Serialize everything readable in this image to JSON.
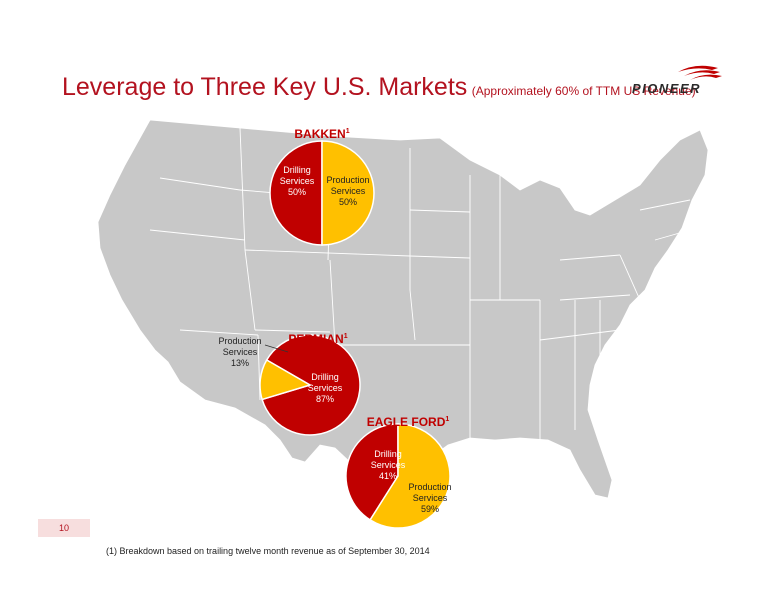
{
  "title": {
    "main": "Leverage to Three Key U.S. Markets",
    "sub": "(Approximately 60% of TTM US Revenue)"
  },
  "logo": {
    "text": "PIONEER"
  },
  "page_number": "10",
  "footnote": "(1)  Breakdown based on trailing twelve month revenue as of September 30, 2014",
  "colors": {
    "drilling": "#c00000",
    "production": "#ffc000",
    "title": "#b3121f",
    "map": "#c8c8c8"
  },
  "chart_data": [
    {
      "type": "pie",
      "title": "BAKKEN",
      "title_superscript": "1",
      "slices": [
        {
          "name": "Drilling Services",
          "value": 50,
          "label": "50%"
        },
        {
          "name": "Production Services",
          "value": 50,
          "label": "50%"
        }
      ]
    },
    {
      "type": "pie",
      "title": "PERMIAN",
      "title_superscript": "1",
      "slices": [
        {
          "name": "Drilling Services",
          "value": 87,
          "label": "87%"
        },
        {
          "name": "Production Services",
          "value": 13,
          "label": "13%"
        }
      ]
    },
    {
      "type": "pie",
      "title": "EAGLE FORD",
      "title_superscript": "1",
      "slices": [
        {
          "name": "Drilling Services",
          "value": 41,
          "label": "41%"
        },
        {
          "name": "Production Services",
          "value": 59,
          "label": "59%"
        }
      ]
    }
  ]
}
